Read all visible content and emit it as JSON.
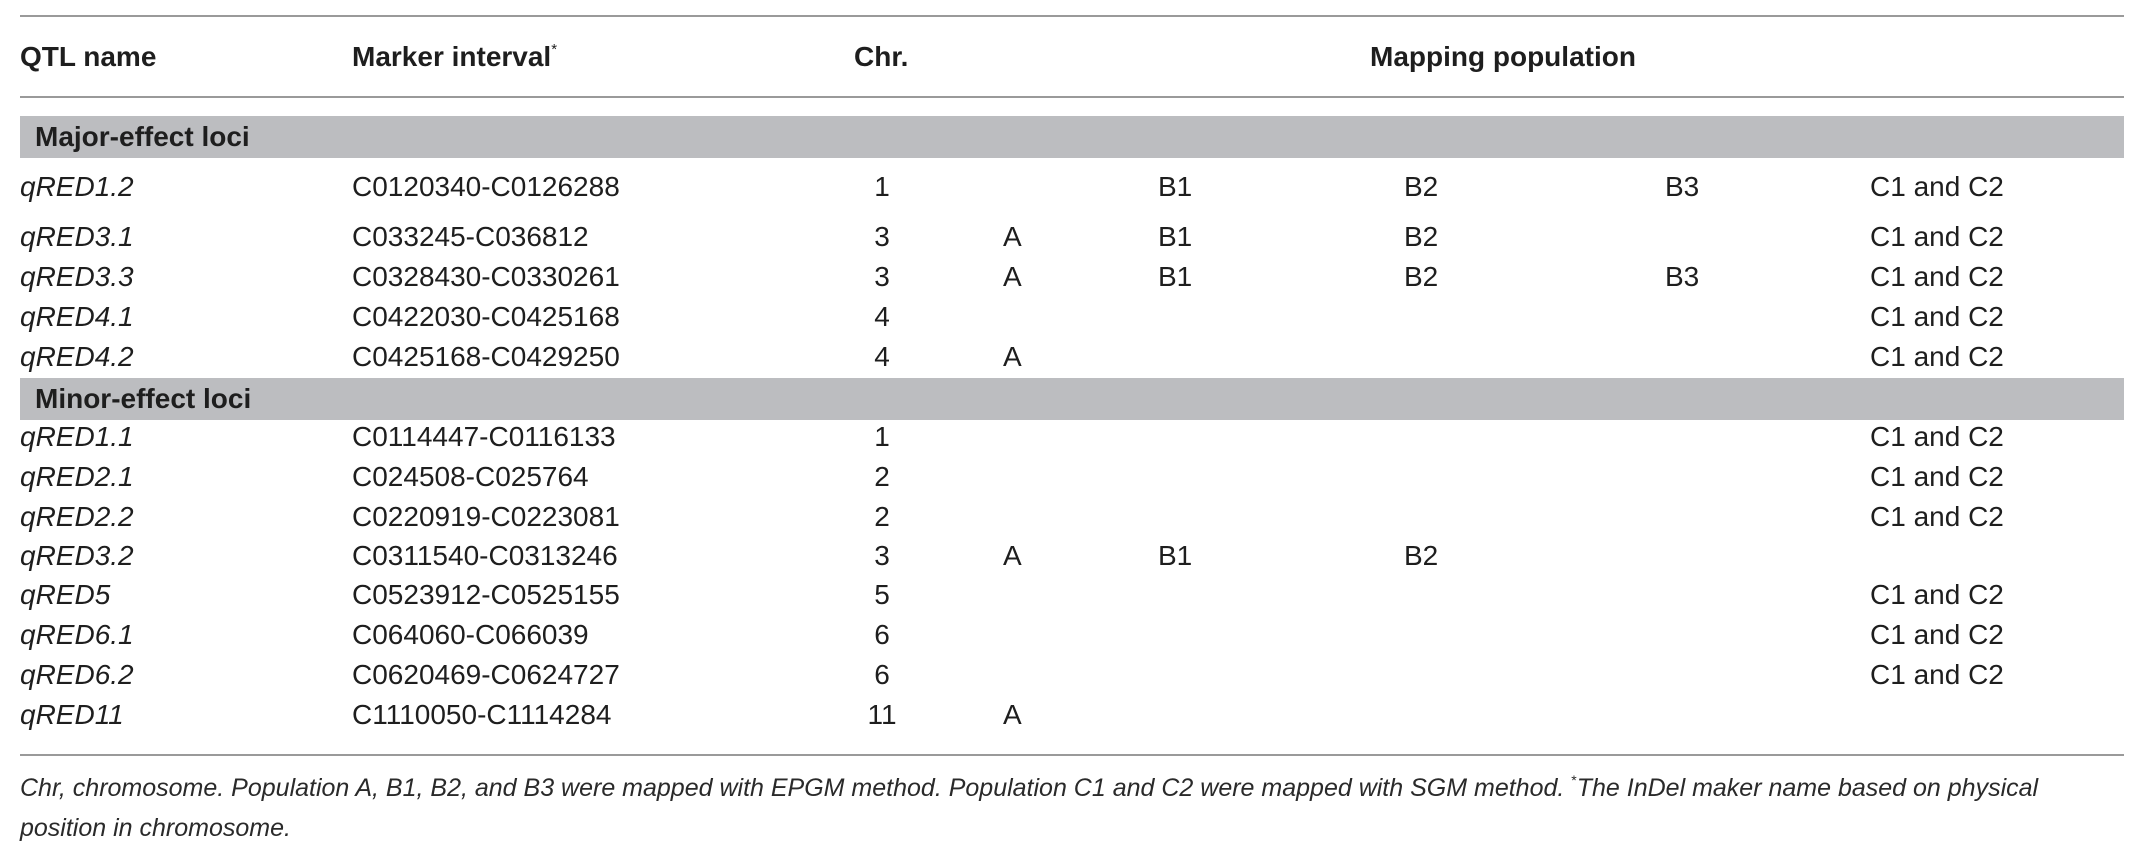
{
  "header": {
    "qtl_name": "QTL name",
    "marker_interval": "Marker interval",
    "marker_interval_mark": "*",
    "chr": "Chr.",
    "mapping_population": "Mapping population"
  },
  "sections": [
    {
      "title": "Major-effect loci",
      "rows": [
        {
          "name": "qRED1.2",
          "marker": "C0120340-C0126288",
          "chr": "1",
          "a": "",
          "b1": "B1",
          "b2": "B2",
          "b3": "B3",
          "c": "C1 and C2"
        },
        {
          "name": "qRED3.1",
          "marker": "C033245-C036812",
          "chr": "3",
          "a": "A",
          "b1": "B1",
          "b2": "B2",
          "b3": "",
          "c": "C1 and C2"
        },
        {
          "name": "qRED3.3",
          "marker": "C0328430-C0330261",
          "chr": "3",
          "a": "A",
          "b1": "B1",
          "b2": "B2",
          "b3": "B3",
          "c": "C1 and C2"
        },
        {
          "name": "qRED4.1",
          "marker": "C0422030-C0425168",
          "chr": "4",
          "a": "",
          "b1": "",
          "b2": "",
          "b3": "",
          "c": "C1 and C2"
        },
        {
          "name": "qRED4.2",
          "marker": "C0425168-C0429250",
          "chr": "4",
          "a": "A",
          "b1": "",
          "b2": "",
          "b3": "",
          "c": "C1 and C2"
        }
      ]
    },
    {
      "title": "Minor-effect loci",
      "rows": [
        {
          "name": "qRED1.1",
          "marker": "C0114447-C0116133",
          "chr": "1",
          "a": "",
          "b1": "",
          "b2": "",
          "b3": "",
          "c": "C1 and C2"
        },
        {
          "name": "qRED2.1",
          "marker": "C024508-C025764",
          "chr": "2",
          "a": "",
          "b1": "",
          "b2": "",
          "b3": "",
          "c": "C1 and C2"
        },
        {
          "name": "qRED2.2",
          "marker": "C0220919-C0223081",
          "chr": "2",
          "a": "",
          "b1": "",
          "b2": "",
          "b3": "",
          "c": "C1 and C2"
        },
        {
          "name": "qRED3.2",
          "marker": "C0311540-C0313246",
          "chr": "3",
          "a": "A",
          "b1": "B1",
          "b2": "B2",
          "b3": "",
          "c": ""
        },
        {
          "name": "qRED5",
          "marker": "C0523912-C0525155",
          "chr": "5",
          "a": "",
          "b1": "",
          "b2": "",
          "b3": "",
          "c": "C1 and C2"
        },
        {
          "name": "qRED6.1",
          "marker": "C064060-C066039",
          "chr": "6",
          "a": "",
          "b1": "",
          "b2": "",
          "b3": "",
          "c": "C1 and C2"
        },
        {
          "name": "qRED6.2",
          "marker": "C0620469-C0624727",
          "chr": "6",
          "a": "",
          "b1": "",
          "b2": "",
          "b3": "",
          "c": "C1 and C2"
        },
        {
          "name": "qRED11",
          "marker": "C1110050-C1114284",
          "chr": "11",
          "a": "A",
          "b1": "",
          "b2": "",
          "b3": "",
          "c": ""
        }
      ]
    }
  ],
  "footnote": {
    "text": "Chr, chromosome. Population A, B1, B2, and B3 were mapped with EPGM method. Population C1 and C2 were mapped with SGM method. ",
    "mark": "*",
    "note": "The InDel maker name based on physical position in chromosome."
  }
}
